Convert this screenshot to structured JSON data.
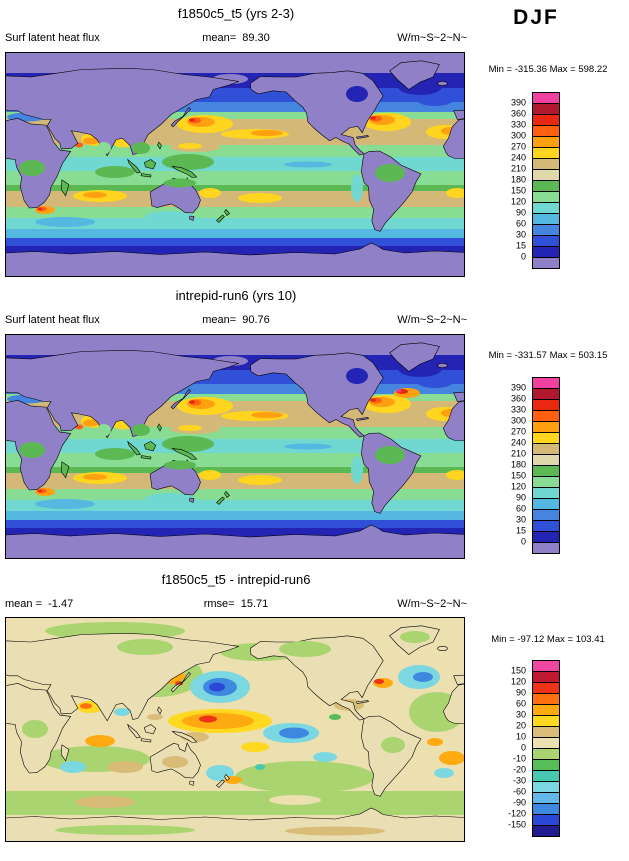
{
  "header": {
    "season_label": "DJF"
  },
  "panels": [
    {
      "title": "f1850c5_t5 (yrs 2-3)",
      "left_label": "Surf latent heat flux",
      "center_label": "mean=  89.30",
      "units_label": "W/m~S~2~N~",
      "minmax_label": "Min = -315.36 Max = 598.22"
    },
    {
      "title": "intrepid-run6 (yrs 10)",
      "left_label": "Surf latent heat flux",
      "center_label": "mean=  90.76",
      "units_label": "W/m~S~2~N~",
      "minmax_label": "Min = -331.57 Max = 503.15"
    },
    {
      "title": "f1850c5_t5 - intrepid-run6",
      "left_label": "mean =  -1.47",
      "center_label": "rmse=  15.71",
      "units_label": "W/m~S~2~N~",
      "minmax_label": "Min = -97.12 Max = 103.41"
    }
  ],
  "colorbars": [
    {
      "labels_top_to_bottom": [
        "390",
        "360",
        "330",
        "300",
        "270",
        "240",
        "210",
        "180",
        "150",
        "120",
        "90",
        "60",
        "30",
        "15",
        "0"
      ],
      "colors_top_to_bottom": [
        "#f040a0",
        "#b01830",
        "#e82810",
        "#ff6010",
        "#ffa010",
        "#ffd520",
        "#d4b878",
        "#e0d8a8",
        "#5cb852",
        "#88dc94",
        "#70d8d0",
        "#55b8e0",
        "#4585e0",
        "#3050d8",
        "#2424b4",
        "#9080c8"
      ]
    },
    {
      "labels_top_to_bottom": [
        "390",
        "360",
        "330",
        "300",
        "270",
        "240",
        "210",
        "180",
        "150",
        "120",
        "90",
        "60",
        "30",
        "15",
        "0"
      ],
      "colors_top_to_bottom": [
        "#f040a0",
        "#b01830",
        "#e82810",
        "#ff6010",
        "#ffa010",
        "#ffd520",
        "#d4b878",
        "#e0d8a8",
        "#5cb852",
        "#88dc94",
        "#70d8d0",
        "#55b8e0",
        "#4585e0",
        "#3050d8",
        "#2424b4",
        "#9080c8"
      ]
    },
    {
      "labels_top_to_bottom": [
        "150",
        "120",
        "90",
        "60",
        "30",
        "20",
        "10",
        "0",
        "-10",
        "-20",
        "-30",
        "-60",
        "-90",
        "-120",
        "-150"
      ],
      "colors_top_to_bottom": [
        "#f048a0",
        "#c01830",
        "#ee3318",
        "#ff7010",
        "#ffaa10",
        "#ffd820",
        "#d8bc78",
        "#ecdfb0",
        "#aad470",
        "#58bc58",
        "#48c8b0",
        "#7cd8e0",
        "#62b8e8",
        "#3f88e0",
        "#2948d8",
        "#201c90"
      ]
    }
  ],
  "chart_data": [
    {
      "type": "heatmap",
      "subtype": "global_filled_contour_map",
      "title": "f1850c5_t5 (yrs 2-3)",
      "variable": "Surf latent heat flux",
      "season": "DJF",
      "units": "W/m~S~2~N~",
      "mean": 89.3,
      "min": -315.36,
      "max": 598.22,
      "contour_levels": [
        0,
        15,
        30,
        60,
        90,
        120,
        150,
        180,
        210,
        240,
        270,
        300,
        330,
        360,
        390
      ],
      "palette_low_to_high": [
        "#9080c8",
        "#2424b4",
        "#3050d8",
        "#4585e0",
        "#55b8e0",
        "#70d8d0",
        "#88dc94",
        "#5cb852",
        "#e0d8a8",
        "#d4b878",
        "#ffd520",
        "#ffa010",
        "#ff6010",
        "#e82810",
        "#b01830",
        "#f040a0"
      ],
      "projection": "cylindrical equidistant, global, 0-360E (Greenwich at left edge)",
      "legend_position": "right",
      "pattern_summary": "Low flux (purple/dark blue, <15) over winter continents, Arctic and Antarctic; maxima (yellow/orange/red, 240-390+) over subtropical oceans and western boundary currents (Kuroshio, Gulf Stream, Arabian Sea, Agulhas); green/teal (60-150) along the equatorial oceans."
    },
    {
      "type": "heatmap",
      "subtype": "global_filled_contour_map",
      "title": "intrepid-run6 (yrs 10)",
      "variable": "Surf latent heat flux",
      "season": "DJF",
      "units": "W/m~S~2~N~",
      "mean": 90.76,
      "min": -331.57,
      "max": 503.15,
      "contour_levels": [
        0,
        15,
        30,
        60,
        90,
        120,
        150,
        180,
        210,
        240,
        270,
        300,
        330,
        360,
        390
      ],
      "palette_low_to_high": [
        "#9080c8",
        "#2424b4",
        "#3050d8",
        "#4585e0",
        "#55b8e0",
        "#70d8d0",
        "#88dc94",
        "#5cb852",
        "#e0d8a8",
        "#d4b878",
        "#ffd520",
        "#ffa010",
        "#ff6010",
        "#e82810",
        "#b01830",
        "#f040a0"
      ],
      "projection": "cylindrical equidistant, global, 0-360E (Greenwich at left edge)",
      "legend_position": "right",
      "pattern_summary": "Very similar to f1850c5_t5: low flux over winter continents and poles, subtropical oceanic maxima with stronger red/orange Gulf Stream and North Atlantic signal."
    },
    {
      "type": "heatmap",
      "subtype": "global_filled_contour_difference_map",
      "title": "f1850c5_t5 - intrepid-run6",
      "variable": "Surf latent heat flux difference",
      "season": "DJF",
      "units": "W/m~S~2~N~",
      "mean": -1.47,
      "rmse": 15.71,
      "min": -97.12,
      "max": 103.41,
      "contour_levels": [
        -150,
        -120,
        -90,
        -60,
        -30,
        -20,
        -10,
        0,
        10,
        20,
        30,
        60,
        90,
        120,
        150
      ],
      "palette_low_to_high": [
        "#201c90",
        "#2948d8",
        "#3f88e0",
        "#62b8e8",
        "#7cd8e0",
        "#48c8b0",
        "#58bc58",
        "#aad470",
        "#ecdfb0",
        "#d8bc78",
        "#ffd820",
        "#ffaa10",
        "#ff7010",
        "#ee3318",
        "#c01830",
        "#f048a0"
      ],
      "projection": "cylindrical equidistant, global, 0-360E (Greenwich at left edge)",
      "legend_position": "right",
      "pattern_summary": "Differences mostly within +/-10 (cream/light green); positive anomalies (yellow/orange/red) in the west-central equatorial Pacific, NW Pacific and Gulf Stream; negative anomalies (cyan/blue) in the central North Pacific, eastern equatorial Pacific and North Atlantic."
    }
  ]
}
